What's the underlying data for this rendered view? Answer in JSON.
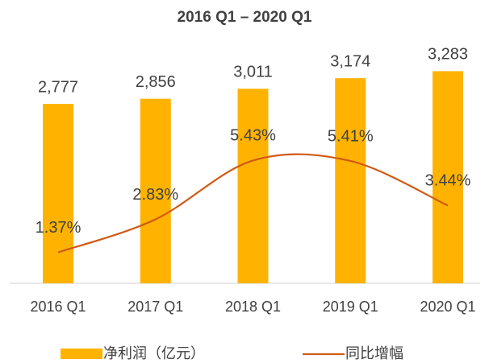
{
  "chart_data": {
    "type": "bar",
    "title": "2016 Q1 – 2020 Q1",
    "categories": [
      "2016 Q1",
      "2017 Q1",
      "2018 Q1",
      "2019 Q1",
      "2020 Q1"
    ],
    "series": [
      {
        "name": "净利润（亿元）",
        "type": "bar",
        "color": "#FFB300",
        "values": [
          2777,
          2856,
          3011,
          3174,
          3283
        ],
        "value_labels": [
          "2,777",
          "2,856",
          "3,011",
          "3,174",
          "3,283"
        ]
      },
      {
        "name": "同比增幅",
        "type": "line",
        "axis": "y2",
        "color": "#D05A14",
        "values": [
          1.37,
          2.83,
          5.43,
          5.41,
          3.44
        ],
        "value_labels": [
          "1.37%",
          "2.83%",
          "5.43%",
          "5.41%",
          "3.44%"
        ]
      }
    ],
    "ylim": [
      0,
      3500
    ],
    "y2lim": [
      0,
      10
    ],
    "legend": "bottom"
  }
}
